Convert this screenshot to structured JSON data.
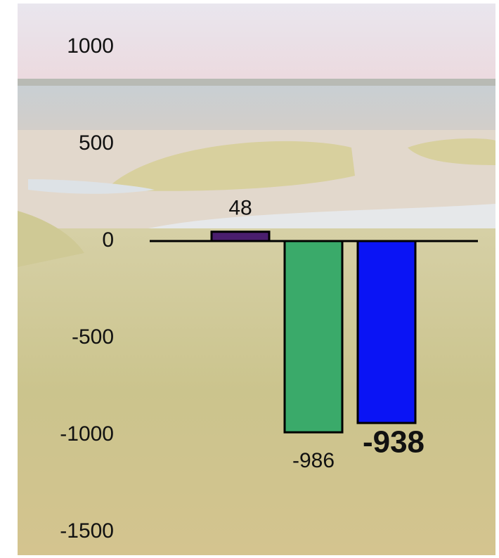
{
  "chart_data": {
    "type": "bar",
    "categories": [
      null,
      null,
      null
    ],
    "values": [
      48,
      -986,
      -938
    ],
    "colors": [
      "#4a1e6e",
      "#3aaa6a",
      "#0a14f5"
    ],
    "bold_value_labels": [
      false,
      false,
      true
    ],
    "ylim": [
      -1500,
      1000
    ],
    "yticks": [
      1000,
      500,
      0,
      -500,
      -1000,
      -1500
    ],
    "grid": false
  }
}
